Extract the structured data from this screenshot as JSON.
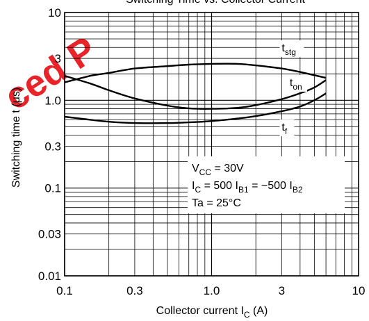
{
  "chart_data": {
    "type": "line",
    "title": "Switching Time vs. Collector Current",
    "x_scale": "log",
    "y_scale": "log",
    "xlim": [
      0.1,
      10
    ],
    "ylim": [
      0.01,
      10
    ],
    "grid": true,
    "x_ticks": [
      0.1,
      0.3,
      1.0,
      3,
      10
    ],
    "x_tick_labels": [
      "0.1",
      "0.3",
      "1.0",
      "3",
      "10"
    ],
    "y_ticks": [
      0.01,
      0.03,
      0.1,
      0.3,
      1.0,
      3,
      10
    ],
    "y_tick_labels": [
      "0.01",
      "0.03",
      "0.1",
      "0.3",
      "1.0",
      "3",
      "10"
    ],
    "xlabel": {
      "text": "Collector current  I",
      "sub": "C",
      "suffix": "  (A)"
    },
    "ylabel": {
      "text": "Switching time  t  (μs)"
    },
    "series": [
      {
        "name": "tstg",
        "label_main": "t",
        "label_sub": "stg",
        "x": [
          0.1,
          0.15,
          0.2,
          0.3,
          0.5,
          0.7,
          1.0,
          1.5,
          2.0,
          3.0,
          4.0,
          6.0
        ],
        "y": [
          1.6,
          1.9,
          2.05,
          2.3,
          2.45,
          2.55,
          2.6,
          2.6,
          2.5,
          2.3,
          2.1,
          1.8
        ]
      },
      {
        "name": "ton",
        "label_main": "t",
        "label_sub": "on",
        "x": [
          0.1,
          0.15,
          0.2,
          0.3,
          0.5,
          0.7,
          1.0,
          1.5,
          2.0,
          3.0,
          4.0,
          5.0,
          6.0
        ],
        "y": [
          1.9,
          1.55,
          1.3,
          1.05,
          0.87,
          0.81,
          0.8,
          0.82,
          0.88,
          1.03,
          1.2,
          1.4,
          1.7
        ]
      },
      {
        "name": "tf",
        "label_main": "t",
        "label_sub": "f",
        "x": [
          0.1,
          0.15,
          0.2,
          0.3,
          0.5,
          0.7,
          1.0,
          1.5,
          2.0,
          3.0,
          4.0,
          5.0,
          6.0
        ],
        "y": [
          0.65,
          0.6,
          0.57,
          0.55,
          0.55,
          0.56,
          0.58,
          0.62,
          0.66,
          0.75,
          0.85,
          1.0,
          1.2
        ]
      }
    ],
    "conditions": [
      {
        "text": "V",
        "sub": "CC",
        "rest": " = 30V"
      },
      {
        "text": "I",
        "sub": "C",
        "rest": " = 500 I",
        "sub2": "B1",
        "rest2": " = −500 I",
        "sub3": "B2"
      },
      {
        "text": "Ta = 25°C",
        "sub": "",
        "rest": ""
      }
    ]
  },
  "watermark": {
    "text": "ced P",
    "color": "#e8232a"
  }
}
